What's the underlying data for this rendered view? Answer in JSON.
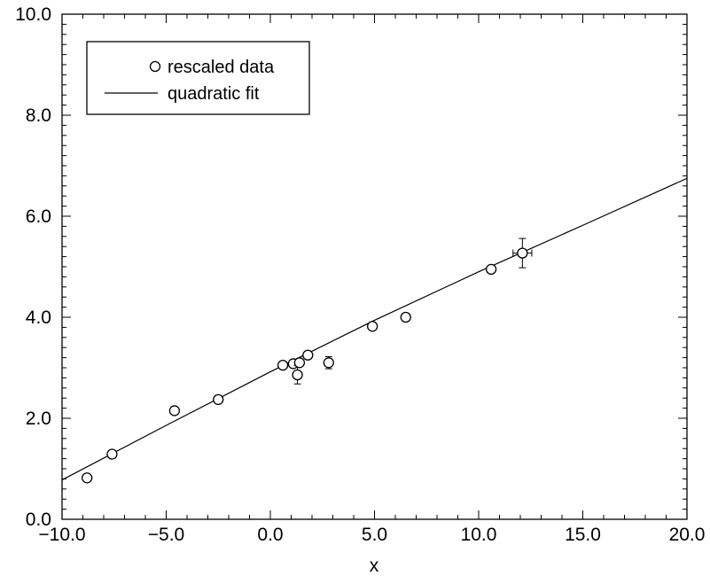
{
  "chart_data": {
    "type": "scatter",
    "title": "",
    "xlabel": "x",
    "ylabel": "",
    "xlim": [
      -10,
      20
    ],
    "ylim": [
      0,
      10
    ],
    "x_ticks": [
      -10,
      -5,
      0,
      5,
      10,
      15,
      20
    ],
    "x_tick_labels": [
      "−10.0",
      "−5.0",
      "0.0",
      "5.0",
      "10.0",
      "15.0",
      "20.0"
    ],
    "y_ticks": [
      0,
      2,
      4,
      6,
      8,
      10
    ],
    "y_tick_labels": [
      "0.0",
      "2.0",
      "4.0",
      "6.0",
      "8.0",
      "10.0"
    ],
    "grid": false,
    "legend_position": "top-left",
    "series": [
      {
        "name": "rescaled data",
        "kind": "points",
        "marker": "open-circle",
        "points": [
          {
            "x": -8.8,
            "y": 0.82
          },
          {
            "x": -7.6,
            "y": 1.29
          },
          {
            "x": -4.6,
            "y": 2.15
          },
          {
            "x": -2.5,
            "y": 2.37
          },
          {
            "x": 0.6,
            "y": 3.05
          },
          {
            "x": 1.1,
            "y": 3.08
          },
          {
            "x": 1.3,
            "y": 2.86,
            "yerr": 0.18
          },
          {
            "x": 1.4,
            "y": 3.1
          },
          {
            "x": 1.8,
            "y": 3.25
          },
          {
            "x": 2.8,
            "y": 3.1,
            "yerr": 0.12
          },
          {
            "x": 4.9,
            "y": 3.82
          },
          {
            "x": 6.5,
            "y": 4.0
          },
          {
            "x": 10.6,
            "y": 4.95
          },
          {
            "x": 12.1,
            "y": 5.27,
            "yerr": 0.29,
            "xerr": 0.45
          }
        ]
      },
      {
        "name": "quadratic fit",
        "kind": "line",
        "x": [
          -10,
          -5,
          0,
          5,
          10,
          15,
          20
        ],
        "y": [
          0.78,
          1.86,
          2.92,
          3.94,
          4.9,
          5.82,
          6.75
        ]
      }
    ]
  },
  "colors": {
    "axes": "#000000",
    "marker_stroke": "#000000",
    "line": "#000000",
    "background": "#ffffff"
  }
}
